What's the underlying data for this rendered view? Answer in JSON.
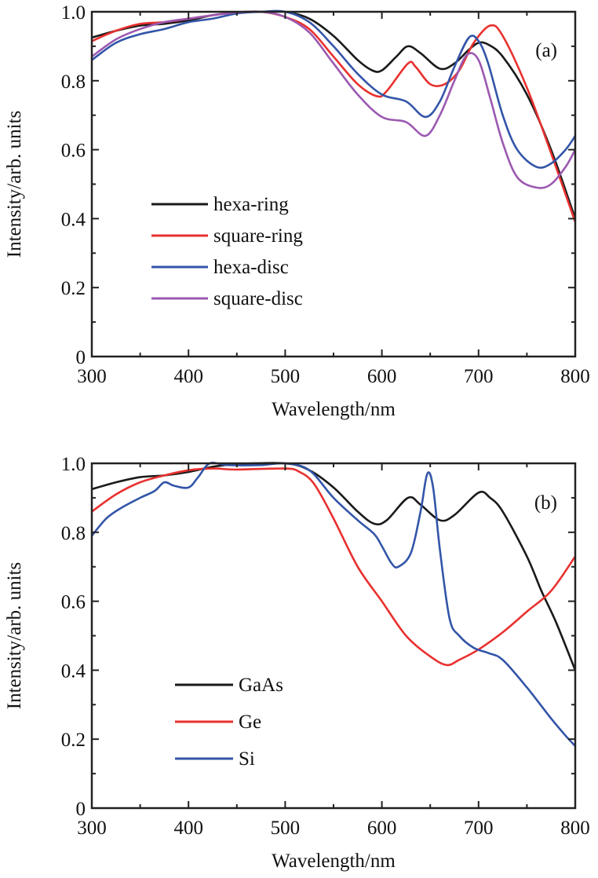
{
  "chart_data": [
    {
      "type": "line",
      "panel_label": "(a)",
      "xlabel": "Wavelength/nm",
      "ylabel": "Intensity/arb. units",
      "xlim": [
        300,
        800
      ],
      "ylim": [
        0,
        1.0
      ],
      "xticks": [
        300,
        400,
        500,
        600,
        700,
        800
      ],
      "yticks": [
        0,
        0.2,
        0.4,
        0.6,
        0.8,
        1.0
      ],
      "ytick_labels": [
        "0",
        "0.2",
        "0.4",
        "0.6",
        "0.8",
        "1.0"
      ],
      "legend_position": "center-left",
      "series": [
        {
          "name": "hexa-ring",
          "color": "#1a1a1a",
          "x": [
            300,
            325,
            350,
            375,
            400,
            425,
            450,
            475,
            500,
            525,
            550,
            575,
            590,
            600,
            615,
            627,
            640,
            660,
            675,
            690,
            700,
            710,
            725,
            750,
            775,
            800
          ],
          "y": [
            0.925,
            0.945,
            0.96,
            0.965,
            0.975,
            0.99,
            0.998,
            1.0,
            1.0,
            0.98,
            0.93,
            0.86,
            0.83,
            0.83,
            0.87,
            0.9,
            0.88,
            0.835,
            0.85,
            0.89,
            0.91,
            0.905,
            0.87,
            0.76,
            0.6,
            0.4
          ]
        },
        {
          "name": "square-ring",
          "color": "#e8312f",
          "x": [
            300,
            325,
            350,
            375,
            400,
            425,
            450,
            475,
            500,
            525,
            550,
            575,
            595,
            605,
            627,
            635,
            650,
            665,
            680,
            695,
            712,
            725,
            750,
            775,
            800
          ],
          "y": [
            0.915,
            0.945,
            0.965,
            0.97,
            0.98,
            0.99,
            0.998,
            1.0,
            0.985,
            0.95,
            0.87,
            0.79,
            0.755,
            0.77,
            0.85,
            0.84,
            0.79,
            0.79,
            0.83,
            0.91,
            0.96,
            0.93,
            0.78,
            0.59,
            0.39
          ]
        },
        {
          "name": "hexa-disc",
          "color": "#3355a8",
          "x": [
            300,
            325,
            350,
            375,
            400,
            425,
            450,
            475,
            500,
            525,
            550,
            575,
            600,
            625,
            645,
            660,
            675,
            690,
            700,
            710,
            725,
            740,
            760,
            775,
            790,
            800
          ],
          "y": [
            0.86,
            0.91,
            0.935,
            0.95,
            0.97,
            0.98,
            0.995,
            1.0,
            1.0,
            0.97,
            0.9,
            0.82,
            0.76,
            0.74,
            0.695,
            0.74,
            0.84,
            0.925,
            0.915,
            0.85,
            0.7,
            0.6,
            0.55,
            0.56,
            0.6,
            0.64
          ]
        },
        {
          "name": "square-disc",
          "color": "#9b59b0",
          "x": [
            300,
            325,
            350,
            375,
            400,
            425,
            450,
            475,
            500,
            525,
            550,
            575,
            600,
            625,
            645,
            660,
            675,
            688,
            700,
            712,
            725,
            740,
            760,
            775,
            790,
            800
          ],
          "y": [
            0.87,
            0.92,
            0.95,
            0.97,
            0.98,
            0.99,
            0.998,
            1.0,
            0.985,
            0.94,
            0.85,
            0.76,
            0.695,
            0.68,
            0.64,
            0.7,
            0.8,
            0.875,
            0.86,
            0.75,
            0.62,
            0.52,
            0.49,
            0.5,
            0.55,
            0.6
          ]
        }
      ]
    },
    {
      "type": "line",
      "panel_label": "(b)",
      "xlabel": "Wavelength/nm",
      "ylabel": "Intensity/arb. units",
      "xlim": [
        300,
        800
      ],
      "ylim": [
        0,
        1.0
      ],
      "xticks": [
        300,
        400,
        500,
        600,
        700,
        800
      ],
      "yticks": [
        0,
        0.2,
        0.4,
        0.6,
        0.8,
        1.0
      ],
      "ytick_labels": [
        "0",
        "0.2",
        "0.4",
        "0.6",
        "0.8",
        "1.0"
      ],
      "legend_position": "lower-left",
      "series": [
        {
          "name": "GaAs",
          "color": "#1a1a1a",
          "x": [
            300,
            325,
            350,
            375,
            400,
            425,
            450,
            500,
            525,
            550,
            575,
            592,
            605,
            627,
            640,
            660,
            675,
            700,
            712,
            725,
            750,
            765,
            780,
            800
          ],
          "y": [
            0.925,
            0.945,
            0.96,
            0.965,
            0.975,
            0.99,
            0.998,
            1.0,
            0.98,
            0.93,
            0.86,
            0.825,
            0.835,
            0.9,
            0.88,
            0.835,
            0.85,
            0.915,
            0.9,
            0.86,
            0.73,
            0.63,
            0.54,
            0.4
          ]
        },
        {
          "name": "Ge",
          "color": "#e8312f",
          "x": [
            300,
            325,
            350,
            375,
            400,
            425,
            450,
            500,
            515,
            530,
            550,
            575,
            600,
            625,
            650,
            667,
            680,
            700,
            725,
            750,
            775,
            800
          ],
          "y": [
            0.86,
            0.91,
            0.945,
            0.965,
            0.98,
            0.985,
            0.982,
            0.985,
            0.975,
            0.94,
            0.84,
            0.7,
            0.6,
            0.5,
            0.44,
            0.415,
            0.43,
            0.46,
            0.51,
            0.57,
            0.63,
            0.73
          ]
        },
        {
          "name": "Si",
          "color": "#3355a8",
          "x": [
            300,
            315,
            330,
            350,
            365,
            375,
            385,
            400,
            410,
            422,
            440,
            475,
            500,
            525,
            550,
            575,
            592,
            600,
            610,
            617,
            630,
            640,
            647,
            653,
            660,
            670,
            680,
            695,
            710,
            725,
            750,
            775,
            790,
            800
          ],
          "y": [
            0.79,
            0.84,
            0.87,
            0.9,
            0.92,
            0.945,
            0.935,
            0.93,
            0.96,
            1.0,
            0.995,
            0.995,
            1.0,
            0.98,
            0.9,
            0.835,
            0.795,
            0.76,
            0.71,
            0.7,
            0.74,
            0.86,
            0.97,
            0.93,
            0.75,
            0.55,
            0.5,
            0.465,
            0.45,
            0.43,
            0.35,
            0.26,
            0.21,
            0.18
          ]
        }
      ]
    }
  ]
}
